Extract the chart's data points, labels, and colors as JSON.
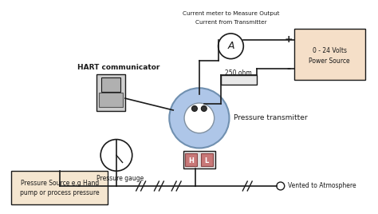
{
  "bg_color": "#ffffff",
  "line_color": "#1a1a1a",
  "light_blue": "#aec6e8",
  "light_peach": "#f5dfc8",
  "light_peach2": "#f5e6d0",
  "gray_device": "#b0b0b0",
  "gray_light": "#d0d0d0",
  "pink_connector": "#c87878",
  "resistor_color": "#e8e8e8",
  "labels": {
    "hart": "HART communicator",
    "pressure_gauge": "Pressure gauge",
    "pressure_transmitter": "Pressure transmitter",
    "current_meter_line1": "Current meter to Measure Output",
    "current_meter_line2": "Current from Transmitter",
    "power_source_line1": "0 - 24 Volts",
    "power_source_line2": "Power Source",
    "ohm": "250 ohm",
    "vented": "Vented to Atmosphere",
    "pressure_source_line1": "Pressure Source e.g Hand",
    "pressure_source_line2": "pump or process pressure",
    "H": "H",
    "L": "L",
    "plus": "+",
    "minus": "-",
    "A": "A"
  }
}
